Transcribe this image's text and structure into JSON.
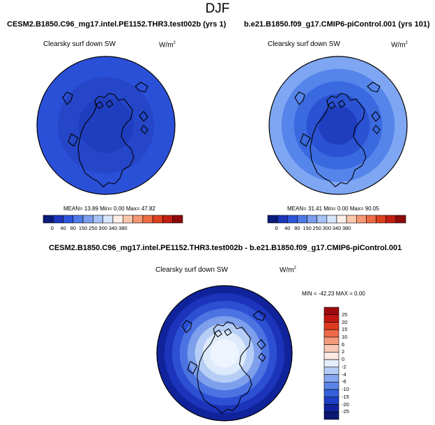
{
  "page_title": "DJF",
  "panels": [
    {
      "case": "CESM2.B1850.C96_mg17.intel.PE1152.THR3.test002b (yrs 1)",
      "variable": "Clearsky surf down SW",
      "units_base": "W/m",
      "units_exp": "2",
      "stats": "MEAN=  13.89  Min=   0.00  Max=  47.82",
      "colorbar": {
        "ticks": [
          "0",
          "40",
          "80",
          "150",
          "250",
          "300",
          "340",
          "380"
        ],
        "colors": [
          "#0a1c7a",
          "#1b36ba",
          "#2c55dc",
          "#4f78e8",
          "#7c9df0",
          "#a6c2f6",
          "#d8e6fb",
          "#fdeee6",
          "#fbc7ac",
          "#f59873",
          "#ee6b43",
          "#de401f",
          "#c11e12",
          "#8e0a0a"
        ]
      },
      "map_rings": [
        "#2b50d8",
        "#2546c8",
        "#1f3ebf"
      ]
    },
    {
      "case": "b.e21.B1850.f09_g17.CMIP6-piControl.001 (yrs 101)",
      "variable": "Clearsky surf down SW",
      "units_base": "W/m",
      "units_exp": "2",
      "stats": "MEAN=  31.41  Min=   0.00  Max=  90.05",
      "colorbar": {
        "ticks": [
          "0",
          "40",
          "80",
          "150",
          "250",
          "300",
          "340",
          "380"
        ],
        "colors": [
          "#0a1c7a",
          "#1b36ba",
          "#2c55dc",
          "#4f78e8",
          "#7c9df0",
          "#a6c2f6",
          "#d8e6fb",
          "#fdeee6",
          "#fbc7ac",
          "#f59873",
          "#ee6b43",
          "#de401f",
          "#c11e12",
          "#8e0a0a"
        ]
      },
      "map_rings": [
        "#7ea6f2",
        "#5585ea",
        "#3a69e0",
        "#2a52d2",
        "#1f3ebf"
      ]
    }
  ],
  "diff": {
    "title": "CESM2.B1850.C96_mg17.intel.PE1152.THR3.test002b - b.e21.B1850.f09_g17.CMIP6-piControl.001",
    "variable": "Clearsky surf down SW",
    "units_base": "W/m",
    "units_exp": "2",
    "stats": "MIN = -42.23  MAX =   0.00",
    "colorbar": {
      "ticks": [
        "25",
        "20",
        "15",
        "10",
        "6",
        "2",
        "0",
        "-2",
        "-4",
        "-6",
        "-10",
        "-15",
        "-20",
        "-25"
      ],
      "colors": [
        "#9c0b0b",
        "#c21612",
        "#de3a22",
        "#ee6a48",
        "#f59b7d",
        "#f9c9b6",
        "#fde9e2",
        "#e4eefc",
        "#b7cdf6",
        "#86a7ee",
        "#5b84e6",
        "#3560dc",
        "#1e3ec4",
        "#10239a",
        "#0b1770"
      ]
    },
    "map_rings": [
      "#10239a",
      "#1c34bb",
      "#2c4fd4",
      "#4b73e1",
      "#7d9fec",
      "#b6cdf5",
      "#ddeafb",
      "#eef4fe"
    ]
  }
}
